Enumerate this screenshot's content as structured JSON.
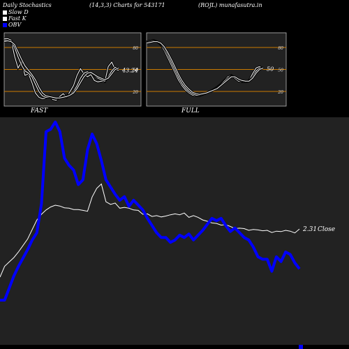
{
  "header": {
    "title": "Daily Stochastics",
    "params": "(14,3,3) Charts for 543171",
    "source": "(ROJL) munafasutra.in"
  },
  "legend": [
    {
      "label": "Slow  D",
      "color": "#ffffff"
    },
    {
      "label": "Fast K",
      "color": "#ffffff"
    },
    {
      "label": "OBV",
      "color": "#0000ff"
    }
  ],
  "colors": {
    "panel_bg": "#222222",
    "band_line": "#cc7a00",
    "obv_line": "#0000ff",
    "close_line": "#ffffff"
  },
  "chart_data": [
    {
      "type": "line",
      "label": "FAST",
      "ylim": [
        0,
        100
      ],
      "ticks": [
        20,
        50,
        80
      ],
      "bands": [
        20,
        50,
        80
      ],
      "value_label": "43.24",
      "series": [
        {
          "name": "Fast K",
          "values": [
            92,
            92,
            90,
            68,
            52,
            60,
            42,
            44,
            32,
            18,
            12,
            10,
            11,
            14,
            9,
            8,
            13,
            17,
            12,
            20,
            28,
            42,
            51,
            44,
            40,
            43,
            35,
            33,
            34,
            33,
            54,
            60,
            50,
            49
          ]
        },
        {
          "name": "Slow  D",
          "values": [
            90,
            90,
            88,
            80,
            67,
            56,
            48,
            45,
            40,
            30,
            20,
            14,
            12,
            12,
            11,
            10,
            11,
            13,
            14,
            16,
            20,
            28,
            38,
            45,
            47,
            45,
            42,
            38,
            36,
            34,
            40,
            48,
            53,
            51
          ]
        },
        {
          "name": "",
          "values": [
            88,
            89,
            88,
            84,
            74,
            64,
            55,
            49,
            43,
            36,
            26,
            18,
            14,
            13,
            12,
            11,
            11,
            12,
            13,
            15,
            18,
            24,
            32,
            40,
            45,
            46,
            43,
            40,
            38,
            36,
            38,
            44,
            50,
            52
          ]
        }
      ]
    },
    {
      "type": "line",
      "label": "FULL",
      "ylim": [
        0,
        100
      ],
      "ticks": [
        20,
        50,
        80
      ],
      "bands": [
        20,
        50,
        80
      ],
      "value_label": "50",
      "series": [
        {
          "name": "Fast K",
          "values": [
            88,
            89,
            90,
            88,
            84,
            76,
            66,
            56,
            46,
            36,
            28,
            22,
            18,
            15,
            14,
            14,
            16,
            18,
            20,
            23,
            26,
            30,
            35,
            40,
            42,
            38,
            34,
            33,
            33,
            35,
            44,
            52,
            54,
            51
          ]
        },
        {
          "name": "Slow  D",
          "values": [
            87,
            88,
            89,
            88,
            85,
            79,
            70,
            60,
            50,
            40,
            31,
            25,
            20,
            17,
            15,
            15,
            16,
            18,
            20,
            22,
            25,
            29,
            34,
            38,
            41,
            40,
            36,
            34,
            33,
            34,
            40,
            48,
            52,
            52
          ]
        },
        {
          "name": "",
          "values": [
            86,
            87,
            88,
            88,
            86,
            81,
            73,
            64,
            54,
            44,
            35,
            28,
            23,
            19,
            17,
            16,
            17,
            18,
            20,
            22,
            24,
            28,
            32,
            36,
            40,
            40,
            37,
            35,
            34,
            34,
            38,
            45,
            50,
            52
          ]
        }
      ]
    },
    {
      "type": "line",
      "value_label": "2.31",
      "value_suffix": "Close",
      "series": [
        {
          "name": "OBV",
          "values": [
            -0.3,
            -0.3,
            -0.2,
            -0.1,
            -0.02,
            0.05,
            0.12,
            0.2,
            0.26,
            0.5,
            1.1,
            1.12,
            1.18,
            1.1,
            0.88,
            0.82,
            0.78,
            0.66,
            0.7,
            0.95,
            1.08,
            1.0,
            0.86,
            0.7,
            0.64,
            0.58,
            0.53,
            0.56,
            0.48,
            0.53,
            0.49,
            0.45,
            0.38,
            0.32,
            0.26,
            0.22,
            0.22,
            0.18,
            0.2,
            0.24,
            0.22,
            0.25,
            0.2,
            0.24,
            0.28,
            0.33,
            0.38,
            0.36,
            0.38,
            0.32,
            0.27,
            0.3,
            0.26,
            0.22,
            0.2,
            0.14,
            0.06,
            0.04,
            0.04,
            -0.06,
            0.06,
            0.02,
            0.1,
            0.08,
            0.01,
            -0.04
          ]
        },
        {
          "name": "Close",
          "values": [
            1.2,
            1.45,
            1.55,
            1.65,
            1.78,
            1.93,
            2.08,
            2.3,
            2.52,
            2.65,
            2.75,
            2.82,
            2.86,
            2.84,
            2.8,
            2.79,
            2.76,
            2.76,
            2.74,
            2.72,
            3.05,
            3.25,
            3.35,
            2.94,
            2.88,
            2.91,
            2.79,
            2.81,
            2.79,
            2.75,
            2.74,
            2.65,
            2.66,
            2.6,
            2.62,
            2.59,
            2.61,
            2.64,
            2.66,
            2.64,
            2.68,
            2.58,
            2.62,
            2.58,
            2.52,
            2.49,
            2.45,
            2.44,
            2.4,
            2.41,
            2.37,
            2.32,
            2.33,
            2.32,
            2.28,
            2.3,
            2.29,
            2.27,
            2.28,
            2.23,
            2.26,
            2.25,
            2.28,
            2.26,
            2.22,
            2.31
          ]
        }
      ]
    }
  ]
}
